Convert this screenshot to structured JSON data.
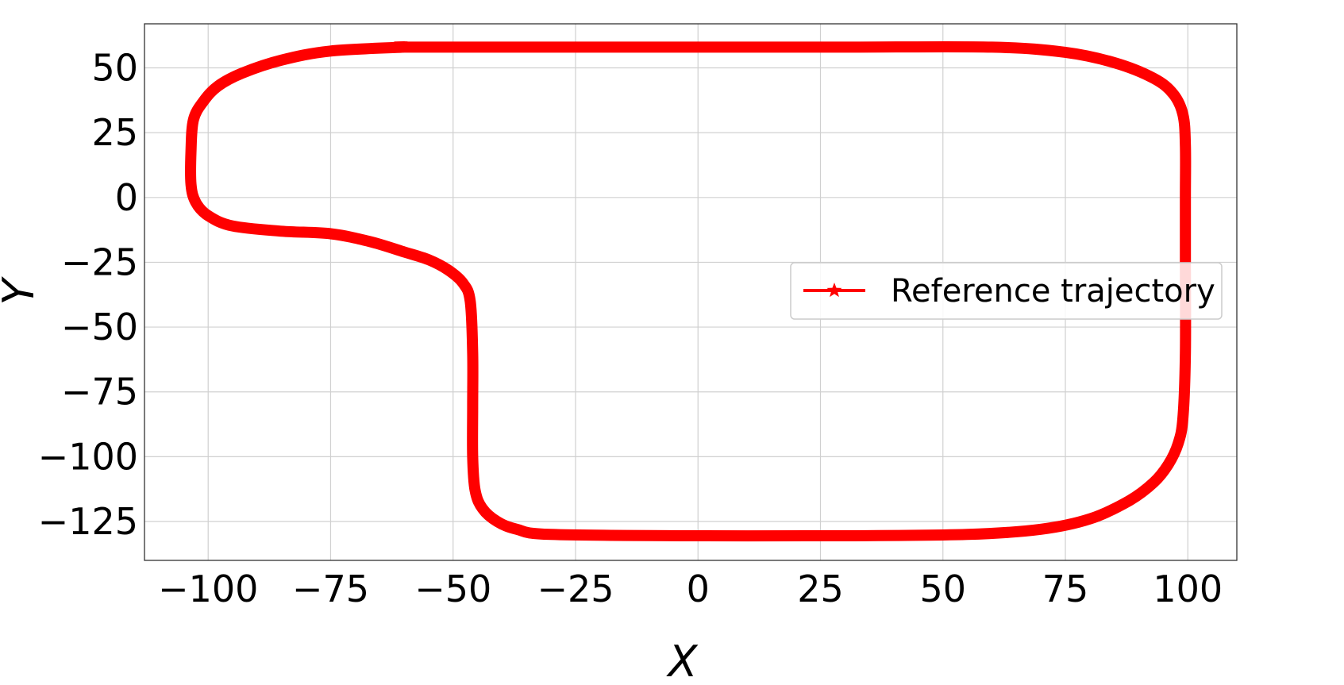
{
  "chart_data": {
    "type": "line",
    "xlabel": "X",
    "ylabel": "Y",
    "xlim": [
      -113,
      110
    ],
    "ylim": [
      -140,
      67
    ],
    "xticks": [
      -100,
      -75,
      -50,
      -25,
      0,
      25,
      50,
      75,
      100
    ],
    "yticks": [
      -125,
      -100,
      -75,
      -50,
      -25,
      0,
      25,
      50
    ],
    "xtick_labels": [
      "−100",
      "−75",
      "−50",
      "−25",
      "0",
      "25",
      "50",
      "75",
      "100"
    ],
    "ytick_labels": [
      "−125",
      "−100",
      "−75",
      "−50",
      "−25",
      "0",
      "25",
      "50"
    ],
    "grid": true,
    "legend_position": "center-right",
    "series": [
      {
        "name": "Reference trajectory",
        "color": "#ff0000",
        "marker": "star",
        "x": [
          -60,
          -30,
          0,
          30,
          60,
          75,
          85,
          93,
          97,
          99,
          99.5,
          99.5,
          99.5,
          99.5,
          99,
          98,
          96,
          93,
          88,
          80,
          70,
          55,
          30,
          0,
          -30,
          -37,
          -41,
          -44,
          -45.5,
          -46,
          -46,
          -46,
          -46.5,
          -48,
          -51,
          -55,
          -60,
          -67,
          -75,
          -85,
          -95,
          -100,
          -102.5,
          -103.5,
          -103.5,
          -103,
          -101,
          -98,
          -93,
          -85,
          -75,
          -60
        ],
        "y": [
          58,
          58,
          58,
          58,
          58,
          56,
          52,
          46,
          40,
          32,
          20,
          0,
          -25,
          -60,
          -85,
          -95,
          -103,
          -110,
          -117,
          -124,
          -128,
          -130,
          -130.5,
          -130.5,
          -130,
          -128,
          -125,
          -120,
          -113,
          -100,
          -80,
          -60,
          -40,
          -33,
          -28,
          -24,
          -21,
          -17,
          -14,
          -13,
          -11,
          -7,
          -2,
          5,
          18,
          30,
          37,
          43,
          48,
          53,
          56.5,
          58
        ]
      }
    ]
  }
}
